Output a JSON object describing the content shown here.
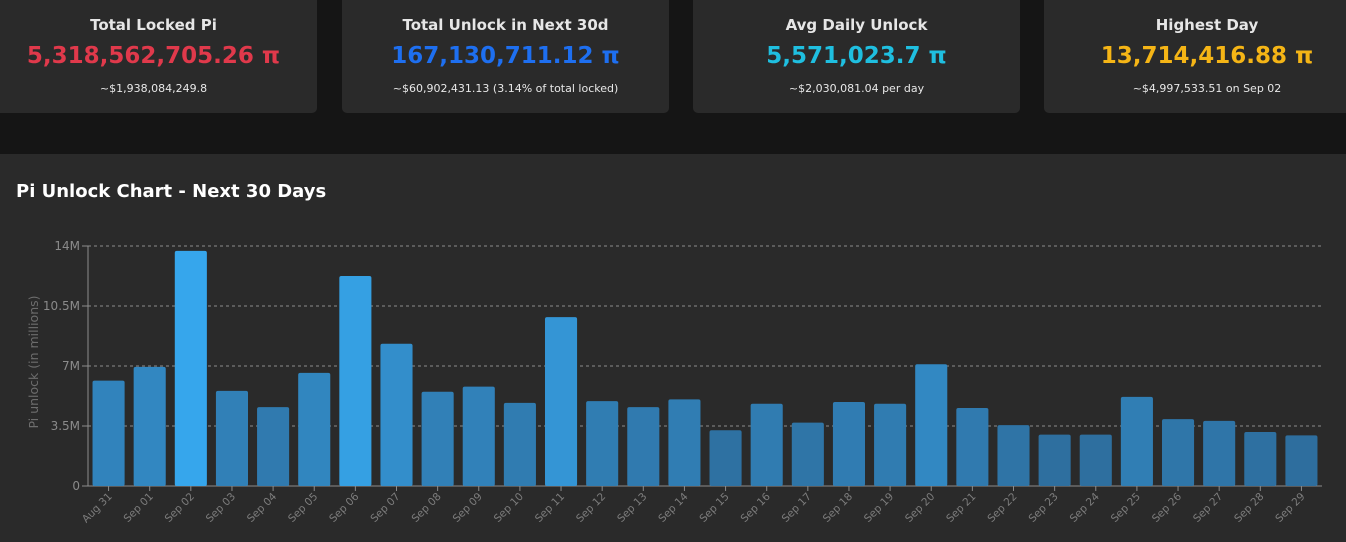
{
  "stats": [
    {
      "title": "Total Locked Pi",
      "value": "5,318,562,705.26 π",
      "sub": "~$1,938,084,249.8",
      "color": "#e0394b"
    },
    {
      "title": "Total Unlock in Next 30d",
      "value": "167,130,711.12 π",
      "sub": "~$60,902,431.13 (3.14% of total locked)",
      "color": "#1e6ff0"
    },
    {
      "title": "Avg Daily Unlock",
      "value": "5,571,023.7 π",
      "sub": "~$2,030,081.04 per day",
      "color": "#1fbfe0"
    },
    {
      "title": "Highest Day",
      "value": "13,714,416.88 π",
      "sub": "~$4,997,533.51 on Sep 02",
      "color": "#f5b516"
    }
  ],
  "chart": {
    "title": "Pi Unlock Chart - Next 30 Days"
  },
  "chart_data": {
    "type": "bar",
    "title": "Pi Unlock Chart - Next 30 Days",
    "xlabel": "",
    "ylabel": "Pi unlock (in millions)",
    "ylim": [
      0,
      14000000
    ],
    "yticks": [
      0,
      3500000,
      7000000,
      10500000,
      14000000
    ],
    "ytick_labels": [
      "0",
      "3.5M",
      "7M",
      "10.5M",
      "14M"
    ],
    "grid": "horizontal dashed",
    "categories": [
      "Aug 31",
      "Sep 01",
      "Sep 02",
      "Sep 03",
      "Sep 04",
      "Sep 05",
      "Sep 06",
      "Sep 07",
      "Sep 08",
      "Sep 09",
      "Sep 10",
      "Sep 11",
      "Sep 12",
      "Sep 13",
      "Sep 14",
      "Sep 15",
      "Sep 16",
      "Sep 17",
      "Sep 18",
      "Sep 19",
      "Sep 20",
      "Sep 21",
      "Sep 22",
      "Sep 23",
      "Sep 24",
      "Sep 25",
      "Sep 26",
      "Sep 27",
      "Sep 28",
      "Sep 29"
    ],
    "values": [
      6150000,
      6950000,
      13714417,
      5550000,
      4600000,
      6600000,
      12250000,
      8300000,
      5500000,
      5800000,
      4850000,
      9850000,
      4950000,
      4600000,
      5050000,
      3250000,
      4800000,
      3700000,
      4900000,
      4800000,
      7100000,
      4550000,
      3550000,
      3000000,
      3000000,
      5200000,
      3900000,
      3800000,
      3150000,
      2950000
    ],
    "colors": {
      "low": "#2e6e9e",
      "high": "#36a6ec"
    }
  }
}
